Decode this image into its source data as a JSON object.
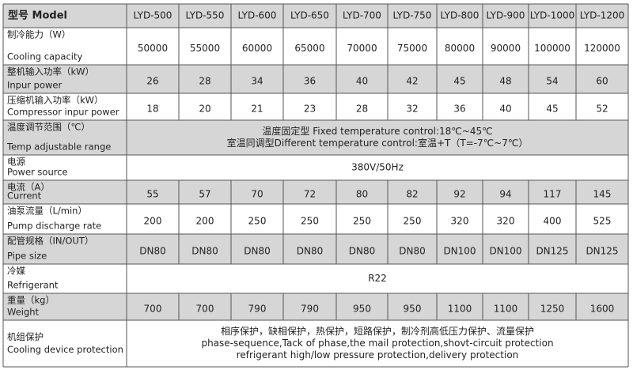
{
  "header": {
    "label": "型号 Model",
    "models": [
      "LYD-500",
      "LYD-550",
      "LYD-600",
      "LYD-650",
      "LYD-700",
      "LYD-750",
      "LYD-800",
      "LYD-900",
      "LYD-1000",
      "LYD-1200"
    ]
  },
  "rows": [
    {
      "label": [
        "制冷能力（W）",
        "Cooling capacity"
      ],
      "values": [
        50000,
        55000,
        60000,
        65000,
        70000,
        75000,
        80000,
        90000,
        100000,
        120000
      ]
    },
    {
      "label": [
        "整机输入功率（kW）",
        "Inpur power"
      ],
      "values": [
        26,
        28,
        34,
        36,
        40,
        42,
        45,
        48,
        54,
        60
      ]
    },
    {
      "label": [
        "压缩机输入功率（kW）",
        "Compressor inpur power"
      ],
      "values": [
        18,
        20,
        21,
        23,
        28,
        32,
        36,
        40,
        45,
        52
      ]
    },
    {
      "label": [
        "温度调节范围（℃）",
        "Temp adjustable range"
      ],
      "text": [
        "温度固定型 Fixed temperature control:18℃~45℃",
        "室温同调型Different temperature control:室温+T（T=-7℃~7℃）"
      ]
    },
    {
      "label": [
        "电源",
        "Power source"
      ],
      "text": [
        "380V/50Hz"
      ]
    },
    {
      "label": [
        "电流（A）",
        "Current"
      ],
      "values": [
        55,
        57,
        70,
        72,
        80,
        82,
        92,
        94,
        117,
        145
      ]
    },
    {
      "label": [
        "油泵流量（L/min）",
        "Pump discharge rate"
      ],
      "values": [
        200,
        200,
        250,
        250,
        250,
        250,
        320,
        320,
        400,
        525
      ]
    },
    {
      "label": [
        "配管规格（IN/OUT）",
        "Pipe size"
      ],
      "values": [
        "DN80",
        "DN80",
        "DN80",
        "DN80",
        "DN80",
        "DN80",
        "DN100",
        "DN100",
        "DN125",
        "DN125"
      ]
    },
    {
      "label": [
        "冷媒",
        "Refrigerant"
      ],
      "text": [
        "R22"
      ]
    },
    {
      "label": [
        "重量（kg）",
        "Weight"
      ],
      "values": [
        700,
        700,
        790,
        790,
        950,
        950,
        1100,
        1100,
        1250,
        1600
      ]
    },
    {
      "label": [
        "机组保护",
        "Cooling device protection"
      ],
      "text": [
        "相序保护，缺相保护，热保护，短路保护，制冷剂高低压力保护、流量保护",
        "phase-sequence,Tack of phase,the mail protection,shovt-circuit protection",
        "refrigerant high/low pressure protection,delivery protection"
      ]
    }
  ]
}
